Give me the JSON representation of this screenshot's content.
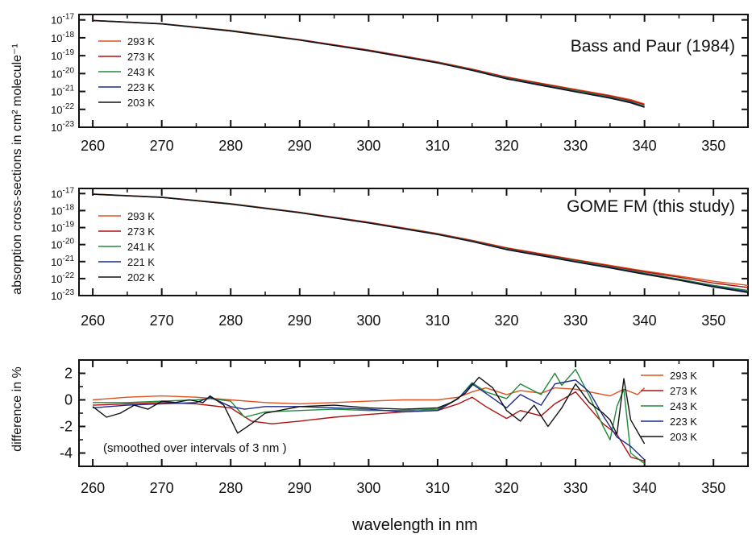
{
  "shared": {
    "xlabel": "wavelength in nm",
    "ylabel_abs": "absorption cross-sections in cm² molecule⁻¹",
    "ylabel_diff": "difference in %",
    "xlim": [
      258,
      355
    ],
    "xticks": [
      260,
      270,
      280,
      290,
      300,
      310,
      320,
      330,
      340,
      350
    ],
    "colors": {
      "c1": "#e0501c",
      "c2": "#b01010",
      "c3": "#1f8a3a",
      "c4": "#1c2a8c",
      "c5": "#111111"
    }
  },
  "chart_data": [
    {
      "type": "line",
      "title": "Bass and Paur (1984)",
      "xlabel": "",
      "ylabel": "absorption cross-sections in cm² molecule⁻¹",
      "ylog": true,
      "ylim": [
        1e-23,
        2e-17
      ],
      "yticks": [
        "10-17",
        "10-18",
        "10-19",
        "10-20",
        "10-21",
        "10-22",
        "10-23"
      ],
      "series": [
        {
          "name": "293 K",
          "x": [
            260,
            270,
            280,
            290,
            300,
            310,
            315,
            320,
            325,
            330,
            335,
            338,
            340
          ],
          "y": [
            9.5e-18,
            6.2e-18,
            2.6e-18,
            8e-19,
            2.1e-19,
            4.5e-20,
            1.8e-20,
            6.5e-21,
            2.9e-21,
            1.3e-21,
            6e-22,
            3.5e-22,
            2e-22
          ]
        },
        {
          "name": "273 K",
          "x": [
            260,
            270,
            280,
            290,
            300,
            310,
            315,
            320,
            325,
            330,
            335,
            338,
            340
          ],
          "y": [
            9.4e-18,
            6.1e-18,
            2.5e-18,
            7.8e-19,
            2e-19,
            4.3e-20,
            1.7e-20,
            6.1e-21,
            2.7e-21,
            1.2e-21,
            5.5e-22,
            3.1e-22,
            1.8e-22
          ]
        },
        {
          "name": "243 K",
          "x": [
            260,
            270,
            280,
            290,
            300,
            310,
            315,
            320,
            325,
            330,
            335,
            338,
            340
          ],
          "y": [
            9.3e-18,
            6e-18,
            2.5e-18,
            7.6e-19,
            1.9e-19,
            4.1e-20,
            1.6e-20,
            5.6e-21,
            2.4e-21,
            1.1e-21,
            4.8e-22,
            2.7e-22,
            1.5e-22
          ]
        },
        {
          "name": "223 K",
          "x": [
            260,
            270,
            280,
            290,
            300,
            310,
            315,
            320,
            325,
            330,
            335,
            338,
            340
          ],
          "y": [
            9.2e-18,
            6e-18,
            2.4e-18,
            7.5e-19,
            1.9e-19,
            4e-20,
            1.55e-20,
            5.3e-21,
            2.3e-21,
            1e-21,
            4.5e-22,
            2.5e-22,
            1.4e-22
          ]
        },
        {
          "name": "203 K",
          "x": [
            260,
            270,
            280,
            290,
            300,
            310,
            315,
            320,
            325,
            330,
            335,
            338,
            340
          ],
          "y": [
            9.1e-18,
            5.9e-18,
            2.4e-18,
            7.4e-19,
            1.85e-19,
            3.9e-20,
            1.5e-20,
            5e-21,
            2.2e-21,
            9.5e-22,
            4.2e-22,
            2.3e-22,
            1.3e-22
          ]
        }
      ],
      "grid": false,
      "legend": "left"
    },
    {
      "type": "line",
      "title": "GOME FM (this study)",
      "xlabel": "",
      "ylabel": "absorption cross-sections in cm² molecule⁻¹",
      "ylog": true,
      "ylim": [
        1e-23,
        2e-17
      ],
      "yticks": [
        "10-17",
        "10-18",
        "10-19",
        "10-20",
        "10-21",
        "10-22",
        "10-23"
      ],
      "series": [
        {
          "name": "293 K",
          "x": [
            260,
            270,
            280,
            290,
            300,
            310,
            315,
            320,
            325,
            330,
            335,
            340,
            345,
            350,
            355
          ],
          "y": [
            9.5e-18,
            6.2e-18,
            2.6e-18,
            8e-19,
            2.1e-19,
            4.5e-20,
            1.8e-20,
            6.5e-21,
            2.9e-21,
            1.3e-21,
            6e-22,
            2.8e-22,
            1.4e-22,
            7e-23,
            4e-23
          ]
        },
        {
          "name": "273 K",
          "x": [
            260,
            270,
            280,
            290,
            300,
            310,
            315,
            320,
            325,
            330,
            335,
            340,
            345,
            350,
            355
          ],
          "y": [
            9.4e-18,
            6.1e-18,
            2.5e-18,
            7.8e-19,
            2e-19,
            4.3e-20,
            1.7e-20,
            6.1e-21,
            2.7e-21,
            1.2e-21,
            5.5e-22,
            2.5e-22,
            1.2e-22,
            5.5e-23,
            3e-23
          ]
        },
        {
          "name": "241 K",
          "x": [
            260,
            270,
            280,
            290,
            300,
            310,
            315,
            320,
            325,
            330,
            335,
            340,
            345,
            350,
            355
          ],
          "y": [
            9.3e-18,
            6e-18,
            2.5e-18,
            7.6e-19,
            1.9e-19,
            4.1e-20,
            1.6e-20,
            5.6e-21,
            2.4e-21,
            1.1e-21,
            4.8e-22,
            2.1e-22,
            9.5e-23,
            4e-23,
            2e-23
          ]
        },
        {
          "name": "221 K",
          "x": [
            260,
            270,
            280,
            290,
            300,
            310,
            315,
            320,
            325,
            330,
            335,
            340,
            345,
            350,
            355
          ],
          "y": [
            9.2e-18,
            6e-18,
            2.4e-18,
            7.5e-19,
            1.9e-19,
            4e-20,
            1.55e-20,
            5.3e-21,
            2.3e-21,
            1e-21,
            4.5e-22,
            1.9e-22,
            8.5e-23,
            3.5e-23,
            1.7e-23
          ]
        },
        {
          "name": "202 K",
          "x": [
            260,
            270,
            280,
            290,
            300,
            310,
            315,
            320,
            325,
            330,
            335,
            340,
            345,
            350,
            355
          ],
          "y": [
            9.1e-18,
            5.9e-18,
            2.4e-18,
            7.4e-19,
            1.85e-19,
            3.9e-20,
            1.5e-20,
            5e-21,
            2.2e-21,
            9.5e-22,
            4.2e-22,
            1.8e-22,
            8e-23,
            3.2e-23,
            1.5e-23
          ]
        }
      ],
      "grid": false,
      "legend": "left"
    },
    {
      "type": "line",
      "title": "",
      "xlabel": "wavelength in nm",
      "ylabel": "difference in %",
      "ylog": false,
      "ylim": [
        -5,
        3
      ],
      "yticks": [
        "2",
        "0",
        "-2",
        "-4"
      ],
      "annotation": "(smoothed over intervals of 3 nm )",
      "series": [
        {
          "name": "293 K",
          "x": [
            260,
            265,
            270,
            275,
            280,
            285,
            290,
            295,
            300,
            305,
            310,
            313,
            315,
            317,
            320,
            322,
            325,
            327,
            330,
            332,
            335,
            337,
            339,
            340
          ],
          "y": [
            0.0,
            0.2,
            0.3,
            0.2,
            0.0,
            -0.2,
            -0.3,
            -0.2,
            -0.1,
            0.0,
            0.0,
            0.2,
            0.6,
            0.9,
            0.4,
            0.7,
            0.5,
            0.9,
            0.8,
            0.6,
            0.3,
            0.8,
            0.4,
            0.9
          ]
        },
        {
          "name": "273 K",
          "x": [
            260,
            265,
            270,
            275,
            280,
            283,
            286,
            290,
            295,
            300,
            305,
            310,
            313,
            315,
            317,
            320,
            322,
            325,
            327,
            330,
            332,
            334,
            336,
            338,
            340
          ],
          "y": [
            -0.4,
            -0.3,
            -0.2,
            -0.3,
            -0.6,
            -1.6,
            -1.8,
            -1.6,
            -1.3,
            -1.1,
            -0.9,
            -0.8,
            -0.3,
            0.2,
            -0.5,
            -1.4,
            -0.8,
            -1.2,
            -0.3,
            0.6,
            -0.6,
            -1.8,
            -2.6,
            -4.3,
            -4.6
          ]
        },
        {
          "name": "243 K",
          "x": [
            260,
            265,
            270,
            275,
            277,
            280,
            282,
            285,
            290,
            295,
            300,
            305,
            310,
            313,
            315,
            317,
            320,
            322,
            325,
            327,
            328,
            330,
            332,
            334,
            335,
            336,
            337,
            338,
            340
          ],
          "y": [
            -0.2,
            -0.2,
            -0.1,
            0.0,
            0.1,
            -0.1,
            -1.3,
            -0.9,
            -0.8,
            -0.7,
            -0.8,
            -0.8,
            -0.7,
            0.1,
            1.3,
            0.6,
            0.1,
            1.2,
            0.4,
            2.0,
            1.1,
            2.3,
            0.3,
            -2.0,
            -3.0,
            -0.5,
            0.8,
            -4.0,
            -4.8
          ]
        },
        {
          "name": "223 K",
          "x": [
            260,
            265,
            270,
            275,
            277,
            280,
            282,
            285,
            290,
            295,
            300,
            305,
            310,
            313,
            315,
            317,
            320,
            322,
            325,
            327,
            330,
            332,
            334,
            336,
            338,
            340
          ],
          "y": [
            -0.6,
            -0.4,
            -0.3,
            -0.2,
            0.2,
            -0.5,
            -0.7,
            -0.5,
            -0.5,
            -0.6,
            -0.7,
            -0.9,
            -0.8,
            0.1,
            1.2,
            0.5,
            -0.6,
            0.4,
            -0.4,
            1.2,
            1.5,
            0.6,
            -1.2,
            -2.8,
            -3.5,
            -4.5
          ]
        },
        {
          "name": "203 K",
          "x": [
            260,
            262,
            264,
            266,
            268,
            270,
            272,
            274,
            276,
            277,
            279,
            281,
            283,
            285,
            290,
            295,
            300,
            305,
            310,
            312,
            314,
            316,
            318,
            320,
            322,
            324,
            326,
            328,
            330,
            332,
            334,
            335,
            336,
            337,
            338,
            340
          ],
          "y": [
            -0.5,
            -1.3,
            -1.0,
            -0.4,
            -0.7,
            -0.1,
            -0.2,
            0.0,
            -0.2,
            0.3,
            -0.4,
            -2.5,
            -1.8,
            -1.0,
            -0.5,
            -0.4,
            -0.6,
            -0.7,
            -0.6,
            -0.2,
            0.5,
            1.7,
            0.9,
            -0.8,
            -1.6,
            -0.4,
            -2.0,
            -0.6,
            1.2,
            -0.2,
            -1.0,
            -1.5,
            -2.6,
            1.6,
            -1.5,
            -3.3
          ]
        }
      ],
      "grid": false,
      "legend": "right"
    }
  ]
}
